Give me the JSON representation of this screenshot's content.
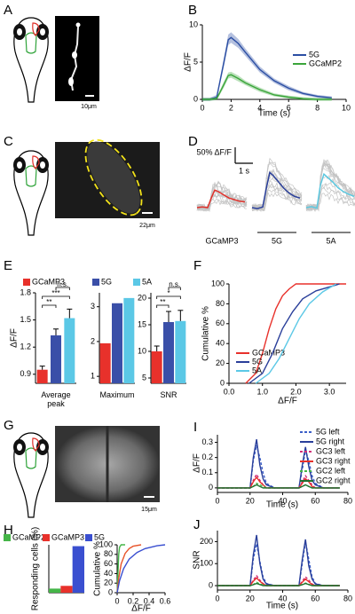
{
  "figure": {
    "panel_labels": [
      "A",
      "B",
      "C",
      "D",
      "E",
      "F",
      "G",
      "H",
      "I",
      "J"
    ],
    "scale_bars": [
      "10μm",
      "22μm",
      "15μm"
    ]
  },
  "chart_data": [
    {
      "type": "line",
      "xlabel": "Time (s)",
      "ylabel": "ΔF/F",
      "xlim": [
        0,
        10
      ],
      "ylim": [
        0,
        10
      ],
      "xticks": [
        0,
        2,
        4,
        6,
        8,
        10
      ],
      "yticks": [
        0,
        5,
        10
      ],
      "legend": "right",
      "x": [
        0,
        0.5,
        1,
        1.5,
        1.8,
        2,
        2.5,
        3,
        4,
        5,
        6,
        7,
        8,
        9
      ],
      "series": [
        {
          "name": "5G",
          "color": "#2b4ea3",
          "values": [
            0,
            0,
            0.3,
            5,
            8,
            8.3,
            7.5,
            6.3,
            4,
            2.5,
            1.5,
            0.8,
            0.4,
            0.2
          ],
          "errors": [
            0.2,
            0.2,
            0.3,
            0.6,
            0.7,
            0.7,
            0.6,
            0.5,
            0.4,
            0.3,
            0.3,
            0.2,
            0.2,
            0.2
          ]
        },
        {
          "name": "GCaMP2",
          "color": "#3aa53a",
          "values": [
            0,
            0,
            0.1,
            2,
            3.2,
            3.3,
            2.8,
            2.2,
            1.3,
            0.6,
            0.3,
            0.1,
            0,
            0
          ],
          "errors": [
            0.2,
            0.2,
            0.2,
            0.4,
            0.4,
            0.4,
            0.4,
            0.3,
            0.3,
            0.2,
            0.2,
            0.2,
            0.2,
            0.2
          ]
        }
      ]
    },
    {
      "type": "traces",
      "scale_y": {
        "value": 50,
        "label": "50% ΔF/F"
      },
      "scale_x": {
        "value": 1,
        "label": "1 s"
      },
      "x": [
        0,
        0.3,
        0.6,
        0.8,
        1.0,
        1.2,
        1.5,
        1.8,
        2.1,
        2.4,
        2.7
      ],
      "series": [
        {
          "name": "GCaMP3",
          "color": "#e0302a",
          "values": [
            0,
            2,
            0,
            30,
            55,
            50,
            40,
            30,
            25,
            20,
            18
          ]
        },
        {
          "name": "5G",
          "color": "#2a3f9a",
          "values": [
            0,
            -3,
            2,
            60,
            110,
            100,
            80,
            60,
            45,
            35,
            30
          ]
        },
        {
          "name": "5A",
          "color": "#5bc8e0",
          "values": [
            0,
            3,
            -2,
            70,
            105,
            95,
            80,
            62,
            50,
            42,
            35
          ]
        }
      ]
    },
    {
      "type": "bar",
      "ylabel": "ΔF/F",
      "xlabel": "Average peak",
      "legend": "top",
      "categories": [
        "GCaMP3",
        "5G",
        "5A"
      ],
      "colors": [
        "#e8312b",
        "#3a4fa8",
        "#5bc8e6"
      ],
      "values": [
        0.95,
        1.33,
        1.52
      ],
      "errors": [
        0.04,
        0.07,
        0.1
      ],
      "ylim": [
        0.8,
        1.8
      ],
      "yticks": [
        0.9,
        1.2,
        1.5,
        1.8
      ],
      "significance": [
        "n.s.",
        "***",
        "**"
      ]
    },
    {
      "type": "bar",
      "xlabel": "Maximum",
      "colors": [
        "#e8312b",
        "#3a4fa8",
        "#5bc8e6"
      ],
      "values": [
        1.95,
        3.1,
        3.25
      ],
      "ylim": [
        0.8,
        3.4
      ],
      "yticks": [
        1,
        2,
        3
      ]
    },
    {
      "type": "bar",
      "xlabel": "SNR",
      "colors": [
        "#e8312b",
        "#3a4fa8",
        "#5bc8e6"
      ],
      "values": [
        10,
        15.5,
        15.7
      ],
      "errors": [
        1,
        2,
        2
      ],
      "ylim": [
        4,
        21
      ],
      "yticks": [
        5,
        10,
        15,
        20
      ],
      "significance": [
        "n.s.",
        "*",
        "**"
      ]
    },
    {
      "type": "line",
      "xlabel": "ΔF/F",
      "ylabel": "Cumulative %",
      "xlim": [
        0,
        3.5
      ],
      "ylim": [
        0,
        100
      ],
      "legend": "lower right",
      "xticks": [
        {
          "value": 0,
          "label": "0.0"
        },
        {
          "value": 1,
          "label": "1.0"
        },
        {
          "value": 2,
          "label": "2.0"
        },
        {
          "value": 3,
          "label": "3.0"
        }
      ],
      "yticks": [
        0,
        20,
        40,
        60,
        80,
        100
      ],
      "series": [
        {
          "name": "GCaMP3",
          "color": "#e8312b",
          "x": [
            0.5,
            0.8,
            1.0,
            1.2,
            1.4,
            1.6,
            1.8,
            2.0,
            2.5,
            3.5
          ],
          "values": [
            0,
            10,
            30,
            55,
            75,
            88,
            95,
            100,
            100,
            100
          ]
        },
        {
          "name": "5G",
          "color": "#2a3f9a",
          "x": [
            0.6,
            1.0,
            1.3,
            1.6,
            1.9,
            2.2,
            2.6,
            3.0,
            3.3
          ],
          "values": [
            0,
            10,
            30,
            55,
            72,
            85,
            93,
            97,
            100
          ]
        },
        {
          "name": "5A",
          "color": "#5bc8e6",
          "x": [
            0.8,
            1.2,
            1.5,
            1.8,
            2.1,
            2.4,
            2.8,
            3.2
          ],
          "values": [
            0,
            10,
            25,
            45,
            65,
            80,
            92,
            100
          ]
        }
      ]
    },
    {
      "type": "bar",
      "ylabel": "Responding cells (%)",
      "legend": "top",
      "categories": [
        "GCaMP2",
        "GCaMP3",
        "5G"
      ],
      "colors": [
        "#45b548",
        "#e8312b",
        "#3a4fd0"
      ],
      "values": [
        3,
        5,
        34
      ],
      "ylim": [
        0,
        35
      ]
    },
    {
      "type": "line",
      "xlabel": "ΔF/F",
      "ylabel": "Cumulative %",
      "xlim": [
        0,
        0.6
      ],
      "ylim": [
        0,
        100
      ],
      "xticks": [
        0,
        0.2,
        0.4,
        0.6
      ],
      "yticks": [
        0,
        20,
        40,
        60,
        80,
        100
      ],
      "series": [
        {
          "color": "#45b548",
          "x": [
            0,
            0.01,
            0.02,
            0.03,
            0.05,
            0.1
          ],
          "values": [
            0,
            40,
            80,
            95,
            100,
            100
          ]
        },
        {
          "color": "#e8552b",
          "x": [
            0,
            0.02,
            0.05,
            0.1,
            0.15,
            0.2,
            0.3
          ],
          "values": [
            0,
            30,
            60,
            82,
            92,
            97,
            100
          ]
        },
        {
          "color": "#3a4fd0",
          "x": [
            0,
            0.03,
            0.08,
            0.15,
            0.25,
            0.35,
            0.5,
            0.6
          ],
          "values": [
            0,
            25,
            50,
            70,
            84,
            92,
            98,
            100
          ]
        }
      ]
    },
    {
      "type": "line",
      "xlabel": "Time (s)",
      "ylabel": "ΔF/F",
      "xlim": [
        0,
        80
      ],
      "ylim": [
        -0.03,
        0.35
      ],
      "xticks": [
        0,
        20,
        40,
        60,
        80
      ],
      "yticks": [
        0,
        0.1,
        0.2,
        0.3
      ],
      "legend": "upper right",
      "x": [
        0,
        5,
        10,
        15,
        20,
        22,
        24,
        26,
        28,
        30,
        35,
        40,
        45,
        50,
        52,
        54,
        56,
        58,
        60,
        65,
        70,
        75
      ],
      "series": [
        {
          "name": "5G left",
          "color": "#3b5fc8",
          "dashed": true,
          "values": [
            0,
            0,
            0,
            0,
            0,
            0.18,
            0.28,
            0.2,
            0.1,
            0.03,
            0,
            0,
            0,
            0,
            0.12,
            0.25,
            0.18,
            0.08,
            0.03,
            0,
            0,
            0
          ]
        },
        {
          "name": "5G right",
          "color": "#2a3f9a",
          "dashed": false,
          "values": [
            0,
            0,
            0,
            0,
            0,
            0.2,
            0.32,
            0.15,
            0.06,
            0.02,
            0,
            0,
            0,
            0,
            0.15,
            0.27,
            0.14,
            0.05,
            0.02,
            0,
            0,
            0
          ]
        },
        {
          "name": "GC3 left",
          "color": "#d0307a",
          "dashed": true,
          "values": [
            0,
            0,
            0,
            0,
            0,
            0.05,
            0.09,
            0.05,
            0.02,
            0,
            0,
            0,
            0,
            0,
            0.04,
            0.08,
            0.05,
            0.02,
            0,
            0,
            0,
            0
          ]
        },
        {
          "name": "GC3 right",
          "color": "#e8312b",
          "dashed": false,
          "values": [
            0,
            0,
            0,
            0,
            0,
            0.04,
            0.07,
            0.04,
            0.02,
            0,
            0,
            0,
            0,
            0,
            0.03,
            0.06,
            0.04,
            0.01,
            0,
            0,
            0,
            0
          ]
        },
        {
          "name": "GC2 left",
          "color": "#45b548",
          "dashed": true,
          "values": [
            0,
            0,
            0,
            0,
            0,
            0.01,
            0.03,
            0.02,
            0.01,
            0,
            0,
            0,
            0,
            0,
            0.01,
            0.02,
            0.01,
            0,
            0,
            0,
            0,
            0
          ]
        },
        {
          "name": "GC2 right",
          "color": "#1f6f2f",
          "dashed": false,
          "values": [
            0,
            0,
            0,
            0,
            0,
            0.01,
            0.02,
            0.01,
            0,
            0,
            0,
            0,
            0,
            0,
            0.01,
            0.02,
            0.01,
            0,
            0,
            0,
            0,
            0
          ]
        }
      ]
    },
    {
      "type": "line",
      "xlabel": "Time (s)",
      "ylabel": "SNR",
      "xlim": [
        0,
        80
      ],
      "ylim": [
        -20,
        250
      ],
      "xticks": [
        0,
        20,
        40,
        60,
        80
      ],
      "yticks": [
        0,
        100,
        200
      ],
      "x": [
        0,
        5,
        10,
        15,
        20,
        22,
        24,
        26,
        28,
        30,
        35,
        40,
        45,
        50,
        52,
        54,
        56,
        58,
        60,
        65,
        70,
        75
      ],
      "series": [
        {
          "color": "#3b5fc8",
          "dashed": true,
          "values": [
            0,
            0,
            0,
            0,
            0,
            120,
            190,
            110,
            40,
            10,
            0,
            0,
            0,
            0,
            100,
            200,
            120,
            40,
            10,
            0,
            0,
            0
          ]
        },
        {
          "color": "#2a3f9a",
          "dashed": false,
          "values": [
            0,
            0,
            0,
            0,
            0,
            140,
            230,
            100,
            30,
            8,
            0,
            0,
            0,
            0,
            120,
            210,
            90,
            30,
            8,
            0,
            0,
            0
          ]
        },
        {
          "color": "#d0307a",
          "dashed": true,
          "values": [
            0,
            0,
            0,
            0,
            0,
            25,
            45,
            25,
            10,
            0,
            0,
            0,
            0,
            0,
            20,
            40,
            25,
            8,
            0,
            0,
            0,
            0
          ]
        },
        {
          "color": "#e8312b",
          "dashed": false,
          "values": [
            0,
            0,
            0,
            0,
            0,
            20,
            35,
            20,
            8,
            0,
            0,
            0,
            0,
            0,
            15,
            30,
            18,
            5,
            0,
            0,
            0,
            0
          ]
        },
        {
          "color": "#45b548",
          "dashed": true,
          "values": [
            0,
            0,
            0,
            0,
            0,
            5,
            15,
            8,
            3,
            0,
            0,
            0,
            0,
            0,
            5,
            12,
            6,
            0,
            0,
            0,
            0,
            0
          ]
        },
        {
          "color": "#1f6f2f",
          "dashed": false,
          "values": [
            0,
            0,
            0,
            0,
            0,
            4,
            10,
            5,
            0,
            0,
            0,
            0,
            0,
            0,
            4,
            10,
            5,
            0,
            0,
            0,
            0,
            0
          ]
        }
      ]
    }
  ]
}
